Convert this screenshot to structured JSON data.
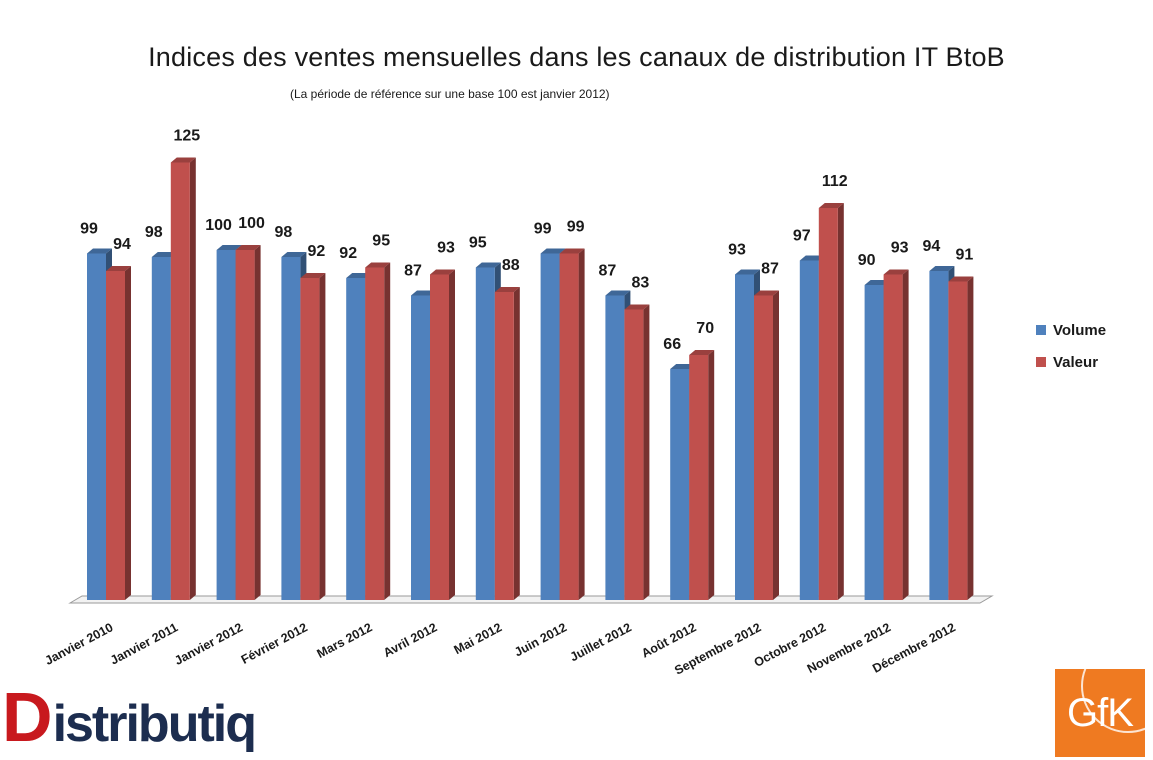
{
  "chart_data": {
    "type": "bar",
    "title": "Indices des ventes mensuelles dans les canaux de distribution IT BtoB",
    "subtitle": "(La période de référence sur une base 100 est janvier 2012)",
    "categories": [
      "Janvier 2010",
      "Janvier 2011",
      "Janvier 2012",
      "Février 2012",
      "Mars 2012",
      "Avril 2012",
      "Mai 2012",
      "Juin 2012",
      "Juillet 2012",
      "Août 2012",
      "Septembre 2012",
      "Octobre 2012",
      "Novembre 2012",
      "Décembre 2012"
    ],
    "series": [
      {
        "name": "Volume",
        "values": [
          99,
          98,
          100,
          98,
          92,
          87,
          95,
          99,
          87,
          66,
          93,
          97,
          90,
          94
        ],
        "color": "#4f81bd"
      },
      {
        "name": "Valeur",
        "values": [
          94,
          125,
          100,
          92,
          95,
          93,
          88,
          99,
          83,
          70,
          87,
          112,
          93,
          91
        ],
        "color": "#c0504d"
      }
    ],
    "ylim": [
      0,
      125
    ],
    "legend_position": "right",
    "grid": false,
    "data_labels": true
  },
  "logos": {
    "left": {
      "first_letter": "D",
      "rest": "istributique"
    },
    "right": {
      "text": "GfK"
    }
  }
}
